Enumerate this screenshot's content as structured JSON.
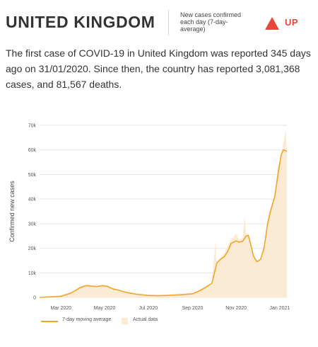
{
  "header": {
    "country": "UNITED KINGDOM",
    "metric_label": "New cases confirmed each day (7-day-average)",
    "trend_label": "UP",
    "trend_color": "#e8453c"
  },
  "summary": "The first case of COVID-19 in United Kingdom was reported 345 days ago on 31/01/2020. Since then, the country has reported 3,081,368 cases, and 81,567 deaths.",
  "colors": {
    "average_line": "#f0a528",
    "actual_area": "#fbebd5",
    "grid": "#e6e6e6"
  },
  "chart_data": {
    "type": "line",
    "ylabel": "Confirmed new cases",
    "ylim": [
      0,
      70000
    ],
    "yticks": [
      0,
      10000,
      20000,
      30000,
      40000,
      50000,
      60000,
      70000
    ],
    "ytick_labels": [
      "0",
      "10k",
      "20k",
      "30k",
      "40k",
      "50k",
      "60k",
      "70k"
    ],
    "xlim": [
      "2020-01-31",
      "2021-01-11"
    ],
    "xticks": [
      "2020-03-01",
      "2020-05-01",
      "2020-07-01",
      "2020-09-01",
      "2020-11-01",
      "2021-01-01"
    ],
    "xtick_labels": [
      "Mar 2020",
      "May 2020",
      "Jul 2020",
      "Sep 2020",
      "Nov 2020",
      "Jan 2021"
    ],
    "grid": "horizontal",
    "legend_position": "bottom-left",
    "series": [
      {
        "name": "7-day moving average",
        "style": "line",
        "x": [
          "2020-01-31",
          "2020-03-01",
          "2020-03-15",
          "2020-03-28",
          "2020-04-05",
          "2020-04-12",
          "2020-04-20",
          "2020-04-28",
          "2020-05-05",
          "2020-05-12",
          "2020-05-20",
          "2020-06-01",
          "2020-06-15",
          "2020-07-01",
          "2020-07-15",
          "2020-08-01",
          "2020-08-15",
          "2020-09-01",
          "2020-09-10",
          "2020-09-20",
          "2020-09-28",
          "2020-10-05",
          "2020-10-10",
          "2020-10-15",
          "2020-10-20",
          "2020-10-25",
          "2020-11-01",
          "2020-11-05",
          "2020-11-10",
          "2020-11-15",
          "2020-11-18",
          "2020-11-21",
          "2020-11-25",
          "2020-11-30",
          "2020-12-05",
          "2020-12-10",
          "2020-12-15",
          "2020-12-20",
          "2020-12-25",
          "2020-12-30",
          "2021-01-03",
          "2021-01-06",
          "2021-01-09",
          "2021-01-11"
        ],
        "values": [
          0,
          500,
          1800,
          4000,
          4800,
          4600,
          4400,
          4800,
          4500,
          3500,
          3000,
          2000,
          1300,
          800,
          700,
          900,
          1100,
          1500,
          2600,
          4200,
          5800,
          14000,
          15500,
          16500,
          18500,
          22000,
          23000,
          22500,
          22800,
          25000,
          25200,
          22000,
          17000,
          14500,
          15500,
          20000,
          30000,
          36000,
          41000,
          51000,
          58000,
          60000,
          59700,
          59500
        ]
      },
      {
        "name": "Actual data",
        "style": "area",
        "x": [
          "2020-01-31",
          "2020-03-01",
          "2020-03-15",
          "2020-03-28",
          "2020-04-05",
          "2020-04-12",
          "2020-04-20",
          "2020-04-28",
          "2020-05-05",
          "2020-05-12",
          "2020-05-20",
          "2020-06-01",
          "2020-06-15",
          "2020-07-01",
          "2020-07-15",
          "2020-08-01",
          "2020-08-15",
          "2020-09-01",
          "2020-09-10",
          "2020-09-20",
          "2020-09-28",
          "2020-10-03",
          "2020-10-05",
          "2020-10-10",
          "2020-10-15",
          "2020-10-20",
          "2020-10-25",
          "2020-11-01",
          "2020-11-05",
          "2020-11-10",
          "2020-11-13",
          "2020-11-15",
          "2020-11-18",
          "2020-11-21",
          "2020-11-25",
          "2020-11-30",
          "2020-12-05",
          "2020-12-10",
          "2020-12-15",
          "2020-12-20",
          "2020-12-25",
          "2020-12-29",
          "2021-01-01",
          "2021-01-04",
          "2021-01-06",
          "2021-01-09",
          "2021-01-11"
        ],
        "values": [
          0,
          600,
          2000,
          4500,
          5200,
          5000,
          4700,
          5100,
          4800,
          3800,
          3200,
          2200,
          1400,
          900,
          750,
          1000,
          1200,
          1700,
          2900,
          4600,
          6200,
          23000,
          12500,
          16000,
          18000,
          21000,
          23500,
          26000,
          23500,
          24000,
          33000,
          26000,
          26000,
          23000,
          18000,
          14000,
          16000,
          21000,
          32000,
          37000,
          41000,
          53000,
          55000,
          59000,
          63000,
          68000,
          60000
        ]
      }
    ]
  }
}
